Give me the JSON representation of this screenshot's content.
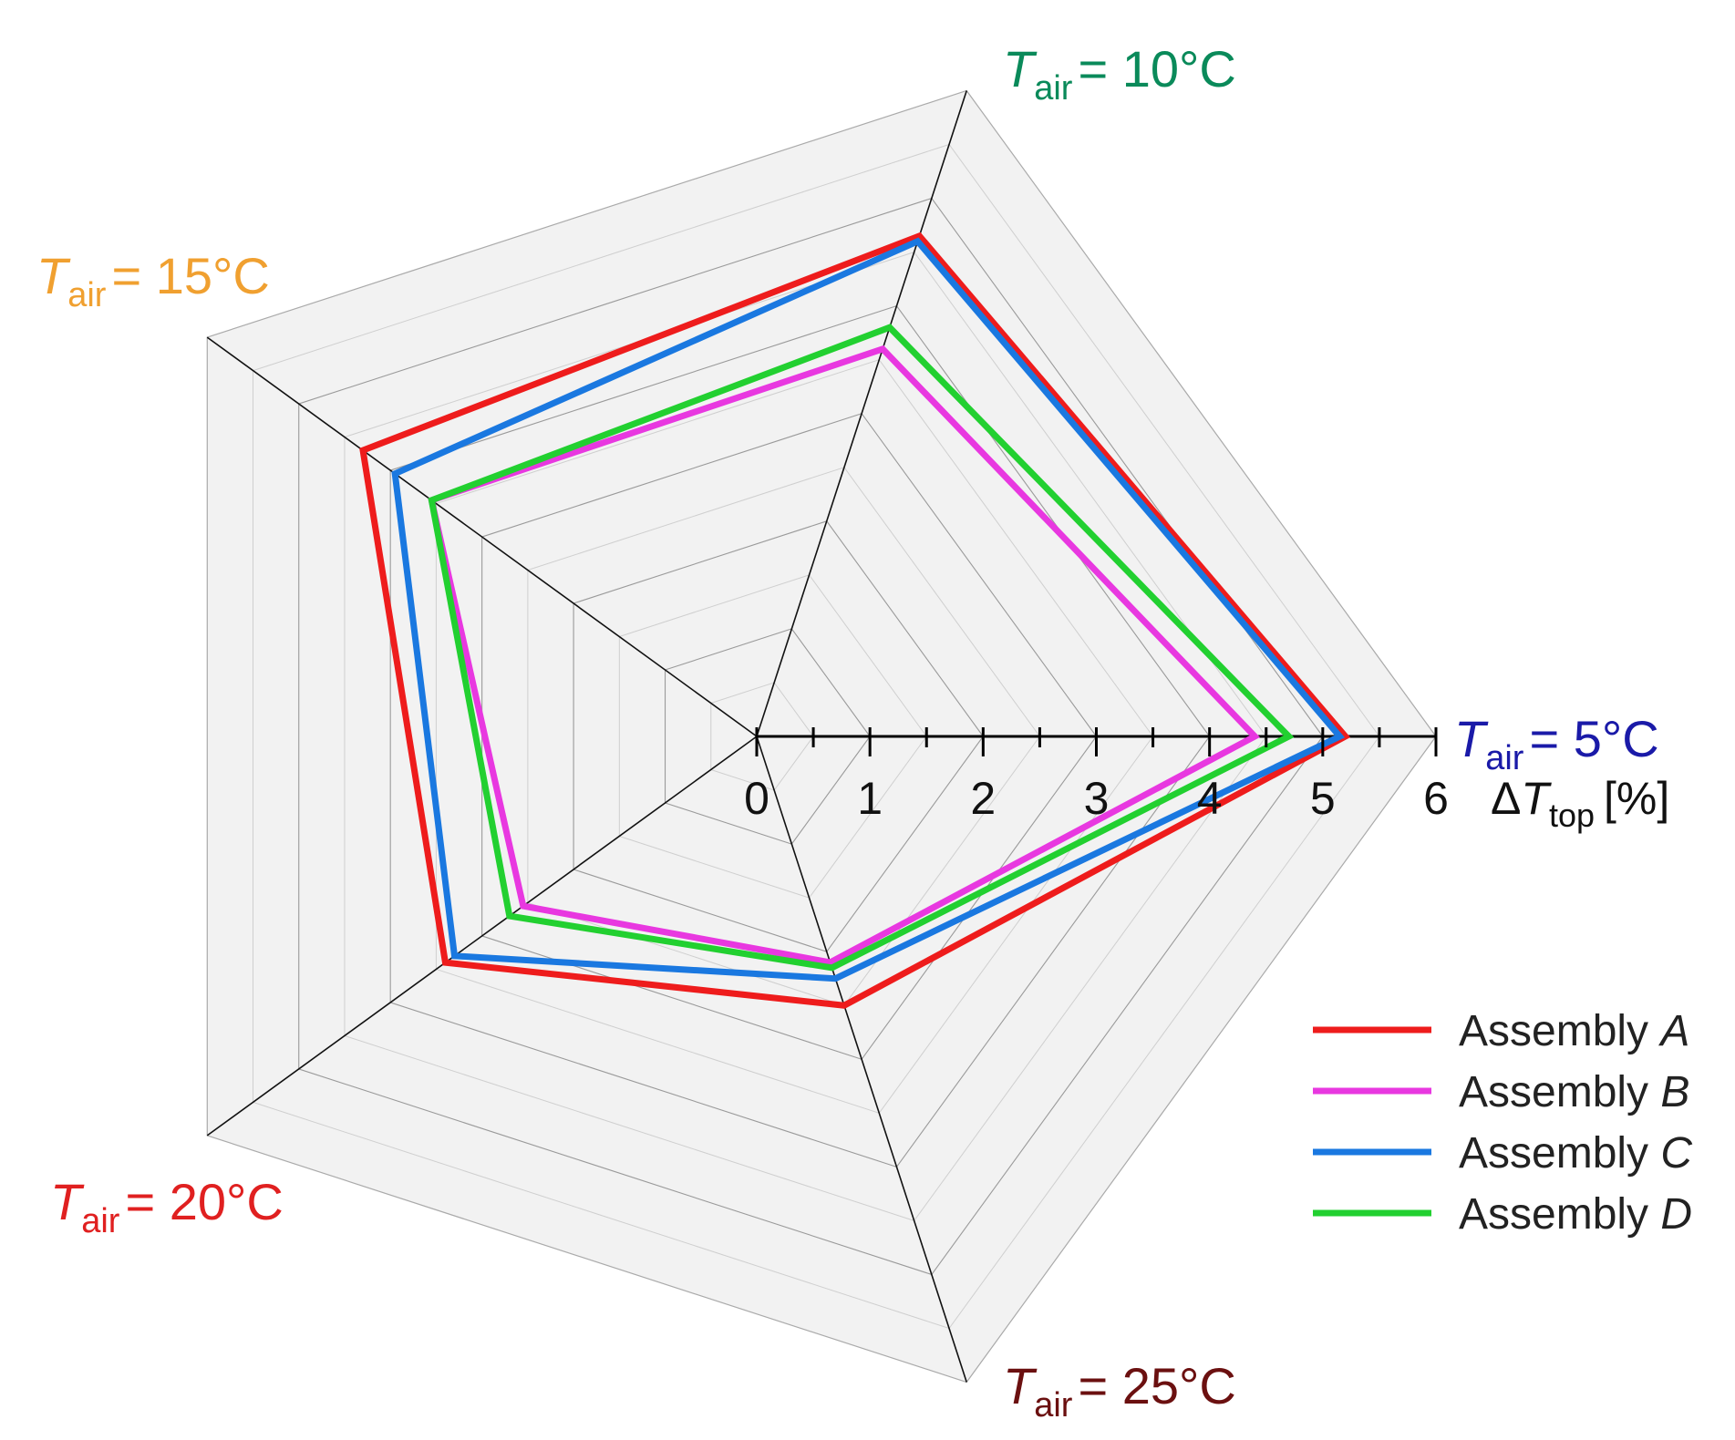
{
  "chart_data": {
    "type": "radar",
    "title": "",
    "radial_axis": {
      "label": "ΔT",
      "label_subscript": "top",
      "label_unit": "[%]",
      "min": 0,
      "max": 6,
      "ticks": [
        "0",
        "1",
        "2",
        "3",
        "4",
        "5",
        "6"
      ],
      "minor_tick_step": 0.5
    },
    "grid": true,
    "categories": [
      {
        "symbol": "T",
        "subscript": "air",
        "value": "= 5°C",
        "color": "#1a1aa8"
      },
      {
        "symbol": "T",
        "subscript": "air",
        "value": "= 10°C",
        "color": "#0a8a5a"
      },
      {
        "symbol": "T",
        "subscript": "air",
        "value": "= 15°C",
        "color": "#f0a030"
      },
      {
        "symbol": "T",
        "subscript": "air",
        "value": "= 20°C",
        "color": "#e02020"
      },
      {
        "symbol": "T",
        "subscript": "air",
        "value": "= 25°C",
        "color": "#6b1010"
      }
    ],
    "series": [
      {
        "name": "Assembly",
        "name_italic": "A",
        "color": "#ee1c1c",
        "values": [
          5.2,
          4.65,
          4.3,
          3.4,
          2.5
        ]
      },
      {
        "name": "Assembly",
        "name_italic": "B",
        "color": "#e838e0",
        "values": [
          4.4,
          3.6,
          3.55,
          2.55,
          2.1
        ]
      },
      {
        "name": "Assembly",
        "name_italic": "C",
        "color": "#1a78e0",
        "values": [
          5.15,
          4.6,
          3.95,
          3.3,
          2.25
        ]
      },
      {
        "name": "Assembly",
        "name_italic": "D",
        "color": "#22d030",
        "values": [
          4.7,
          3.8,
          3.55,
          2.7,
          2.15
        ]
      }
    ],
    "legend_position": "bottom-right"
  }
}
